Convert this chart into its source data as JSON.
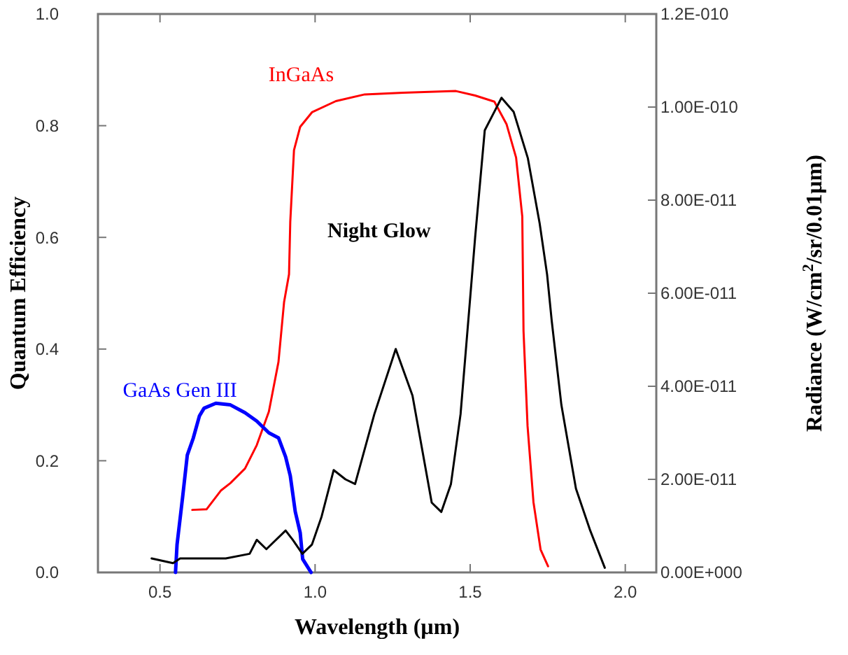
{
  "chart_data": {
    "type": "line",
    "xlabel": "Wavelength (µm)",
    "ylabel": "Quantum Efficiency",
    "y2label": "Radiance (W/cm$^{2}$/sr/0.01µm)",
    "xlim": [
      0.3,
      2.1
    ],
    "xticks": [
      {
        "value": 0.5,
        "label": "0.5"
      },
      {
        "value": 1,
        "label": "1.0"
      },
      {
        "value": 1.5,
        "label": "1.5"
      },
      {
        "value": 2,
        "label": "2.0"
      }
    ],
    "ylim": [
      0,
      1
    ],
    "yticks": [
      {
        "value": 0,
        "label": "0.0"
      },
      {
        "value": 0.2,
        "label": "0.2"
      },
      {
        "value": 0.4,
        "label": "0.4"
      },
      {
        "value": 0.6,
        "label": "0.6"
      },
      {
        "value": 0.8,
        "label": "0.8"
      },
      {
        "value": 1,
        "label": "1.0"
      }
    ],
    "y2lim": [
      0,
      1.2e-10
    ],
    "y2ticks": [
      {
        "value": 0,
        "label": "0.00E+000"
      },
      {
        "value": 2e-11,
        "label": "2.00E-011"
      },
      {
        "value": 4e-11,
        "label": "4.00E-011"
      },
      {
        "value": 6e-11,
        "label": "6.00E-011"
      },
      {
        "value": 8e-11,
        "label": "8.00E-011"
      },
      {
        "value": 1e-10,
        "label": "1.00E-010"
      },
      {
        "value": 1.2e-10,
        "label": "1.2E-010"
      }
    ],
    "grid": false,
    "marker": "none",
    "line_style": "solid",
    "series": [
      {
        "name": "InGaAs",
        "color": "#ff0000",
        "x": [
          0.604,
          0.65,
          0.697,
          0.727,
          0.774,
          0.812,
          0.851,
          0.882,
          0.9,
          0.916,
          0.92,
          0.932,
          0.952,
          0.99,
          1.067,
          1.16,
          1.284,
          1.454,
          1.516,
          1.578,
          1.617,
          1.648,
          1.668,
          1.672,
          1.685,
          1.704,
          1.727,
          1.751
        ],
        "values": [
          0.112,
          0.113,
          0.147,
          0.16,
          0.186,
          0.228,
          0.288,
          0.377,
          0.484,
          0.534,
          0.628,
          0.756,
          0.798,
          0.824,
          0.844,
          0.856,
          0.859,
          0.862,
          0.854,
          0.843,
          0.803,
          0.743,
          0.637,
          0.432,
          0.262,
          0.126,
          0.041,
          0.011
        ]
      },
      {
        "name": "GaAs Gen III",
        "color": "#0000ff",
        "x": [
          0.55,
          0.555,
          0.573,
          0.588,
          0.607,
          0.627,
          0.642,
          0.68,
          0.727,
          0.774,
          0.812,
          0.851,
          0.882,
          0.905,
          0.92,
          0.936,
          0.952,
          0.96,
          0.987
        ],
        "values": [
          0,
          0.05,
          0.135,
          0.21,
          0.24,
          0.28,
          0.294,
          0.303,
          0.3,
          0.286,
          0.271,
          0.25,
          0.241,
          0.207,
          0.173,
          0.109,
          0.071,
          0.024,
          0
        ]
      },
      {
        "name": "Night Glow",
        "color": "#000000",
        "axis": "y2",
        "x": [
          0.473,
          0.542,
          0.565,
          0.635,
          0.712,
          0.789,
          0.812,
          0.843,
          0.905,
          0.928,
          0.959,
          0.99,
          1.021,
          1.06,
          1.098,
          1.129,
          1.191,
          1.26,
          1.314,
          1.376,
          1.407,
          1.438,
          1.469,
          1.5,
          1.516,
          1.547,
          1.578,
          1.601,
          1.64,
          1.686,
          1.724,
          1.748,
          1.763,
          1.794,
          1.841,
          1.887,
          1.934
        ],
        "values": [
          3e-12,
          2e-12,
          3e-12,
          3e-12,
          3e-12,
          4e-12,
          7e-12,
          5e-12,
          9e-12,
          7e-12,
          4e-12,
          6e-12,
          1.2e-11,
          2.2e-11,
          2e-11,
          1.9e-11,
          3.4e-11,
          4.8e-11,
          3.8e-11,
          1.5e-11,
          1.3e-11,
          1.9e-11,
          3.4e-11,
          5.9e-11,
          7.2e-11,
          9.5e-11,
          9.9e-11,
          1.02e-10,
          9.9e-11,
          8.9e-11,
          7.5e-11,
          6.4e-11,
          5.4e-11,
          3.6e-11,
          1.8e-11,
          9e-12,
          1e-12
        ]
      }
    ]
  }
}
